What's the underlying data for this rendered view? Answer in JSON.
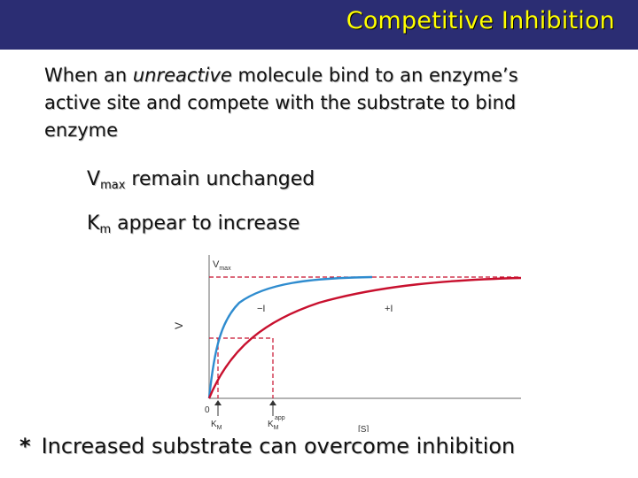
{
  "slide": {
    "title": "Competitive Inhibition",
    "intro_pre": "When an ",
    "intro_em": "unreactive",
    "intro_post": " molecule bind to an enzyme’s active site and compete with the substrate to bind enzyme",
    "bullets": [
      {
        "main": "V",
        "sub": "max",
        "rest": " remain unchanged"
      },
      {
        "main": "K",
        "sub": "m",
        "rest": " appear to increase"
      }
    ],
    "footer_star": "*",
    "footer_text": "Increased substrate can overcome inhibition"
  },
  "graph": {
    "y_axis_label": "V",
    "x_axis_label": "[S]",
    "origin_label": "0",
    "vmax_label": "V",
    "vmax_sub": "max",
    "curve_minus_label": "−I",
    "curve_plus_label": "+I",
    "km_label": "K",
    "km_sub": "M",
    "km_app_label": "K",
    "km_app_sub": "M",
    "km_app_sup": "app"
  },
  "colors": {
    "title_bar": "#2b2d73",
    "title_text": "#ffff00",
    "curve_no_inhibitor": "#2f8ccf",
    "curve_inhibitor": "#c8102e"
  }
}
